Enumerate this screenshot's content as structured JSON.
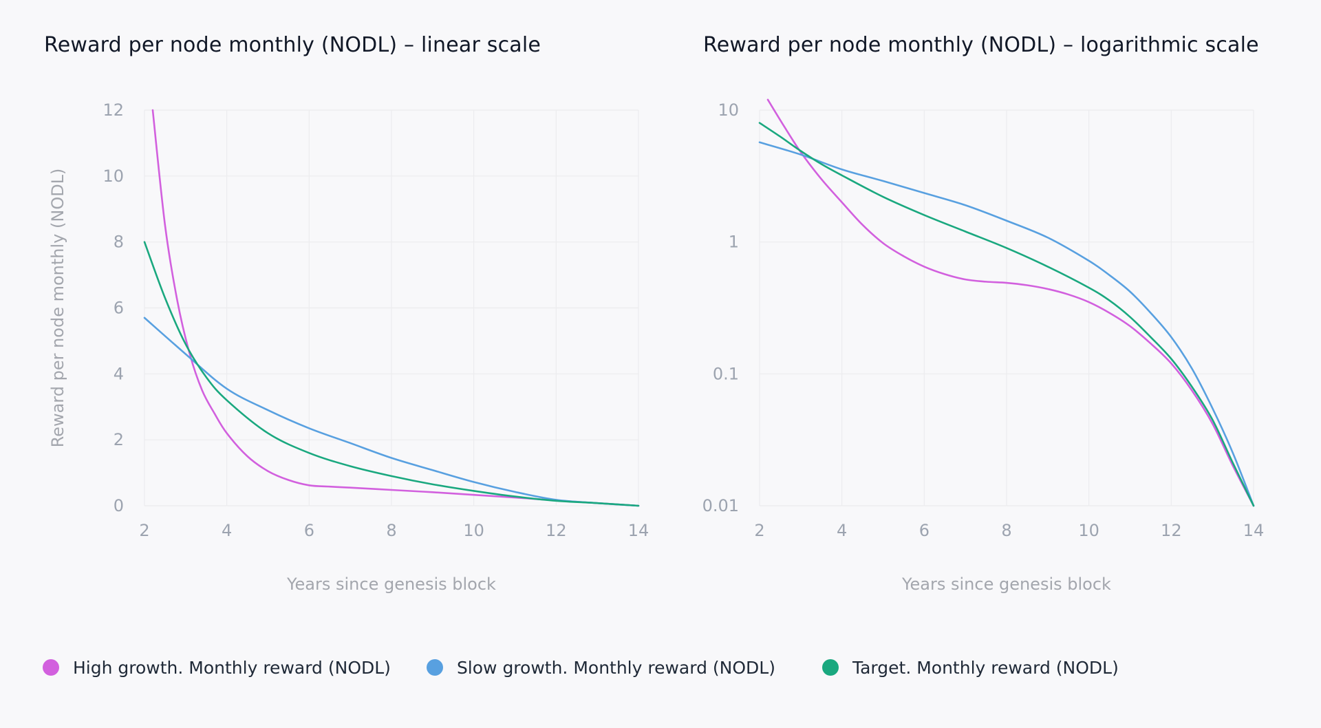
{
  "legend": [
    {
      "label": "High growth. Monthly reward (NODL)",
      "color": "#d260de"
    },
    {
      "label": "Slow growth. Monthly reward (NODL)",
      "color": "#58a0e0"
    },
    {
      "label": "Target. Monthly reward (NODL)",
      "color": "#1aa87f"
    }
  ],
  "chart_data": [
    {
      "type": "line",
      "title": "Reward per node monthly (NODL) – linear scale",
      "xlabel": "Years since genesis block",
      "ylabel": "Reward per node monthly (NODL)",
      "x_scale": "linear",
      "y_scale": "linear",
      "xlim": [
        2,
        14
      ],
      "ylim": [
        0,
        12
      ],
      "x_ticks": [
        2,
        4,
        6,
        8,
        10,
        12,
        14
      ],
      "y_ticks": [
        0,
        2,
        4,
        6,
        8,
        10,
        12
      ],
      "x_tick_labels": [
        "2",
        "4",
        "6",
        "8",
        "10",
        "12",
        "14"
      ],
      "y_tick_labels": [
        "0",
        "2",
        "4",
        "6",
        "8",
        "10",
        "12"
      ],
      "grid": true,
      "legend_position": "bottom",
      "series": [
        {
          "name": "High growth. Monthly reward (NODL)",
          "color": "#d260de",
          "x": [
            2.2,
            2.5,
            2.8,
            3.1,
            3.4,
            3.7,
            4.0,
            4.5,
            5.0,
            5.5,
            6.0,
            6.5,
            7.0,
            8.0,
            9.0,
            10.0,
            11.0,
            12.0,
            13.0,
            14.0
          ],
          "y": [
            12.0,
            8.5,
            6.2,
            4.6,
            3.5,
            2.8,
            2.2,
            1.5,
            1.05,
            0.78,
            0.62,
            0.58,
            0.55,
            0.48,
            0.41,
            0.33,
            0.25,
            0.16,
            0.08,
            0.0
          ]
        },
        {
          "name": "Slow growth. Monthly reward (NODL)",
          "color": "#58a0e0",
          "x": [
            2.0,
            3.0,
            4.0,
            5.0,
            6.0,
            7.0,
            8.0,
            9.0,
            10.0,
            11.0,
            12.0,
            13.0,
            14.0
          ],
          "y": [
            5.7,
            4.6,
            3.55,
            2.9,
            2.35,
            1.9,
            1.45,
            1.08,
            0.72,
            0.42,
            0.18,
            0.08,
            0.0
          ]
        },
        {
          "name": "Target. Monthly reward (NODL)",
          "color": "#1aa87f",
          "x": [
            2.0,
            2.5,
            3.0,
            3.5,
            4.0,
            5.0,
            6.0,
            7.0,
            8.0,
            9.0,
            10.0,
            11.0,
            12.0,
            13.0,
            14.0
          ],
          "y": [
            8.0,
            6.3,
            4.9,
            3.9,
            3.2,
            2.2,
            1.6,
            1.2,
            0.9,
            0.65,
            0.45,
            0.28,
            0.15,
            0.08,
            0.0
          ]
        }
      ]
    },
    {
      "type": "line",
      "title": "Reward per node monthly (NODL) – logarithmic scale",
      "xlabel": "Years since genesis block",
      "ylabel": "",
      "x_scale": "linear",
      "y_scale": "log",
      "xlim": [
        2,
        14
      ],
      "ylim": [
        0.01,
        10
      ],
      "x_ticks": [
        2,
        4,
        6,
        8,
        10,
        12,
        14
      ],
      "y_ticks": [
        0.01,
        0.1,
        1,
        10
      ],
      "x_tick_labels": [
        "2",
        "4",
        "6",
        "8",
        "10",
        "12",
        "14"
      ],
      "y_tick_labels": [
        "0.01",
        "0.1",
        "1",
        "10"
      ],
      "grid": true,
      "legend_position": "bottom",
      "series": [
        {
          "name": "High growth. Monthly reward (NODL)",
          "color": "#d260de",
          "x": [
            2.2,
            2.6,
            3.0,
            3.5,
            4.0,
            4.5,
            5.0,
            5.5,
            6.0,
            6.5,
            7.0,
            7.5,
            8.0,
            8.5,
            9.0,
            9.5,
            10.0,
            10.5,
            11.0,
            11.5,
            12.0,
            12.5,
            13.0,
            13.5,
            14.0
          ],
          "y": [
            12.0,
            7.5,
            4.8,
            3.0,
            2.0,
            1.35,
            0.98,
            0.78,
            0.65,
            0.57,
            0.52,
            0.5,
            0.49,
            0.47,
            0.44,
            0.4,
            0.35,
            0.29,
            0.23,
            0.17,
            0.12,
            0.075,
            0.042,
            0.02,
            0.01
          ]
        },
        {
          "name": "Slow growth. Monthly reward (NODL)",
          "color": "#58a0e0",
          "x": [
            2.0,
            3.0,
            4.0,
            5.0,
            6.0,
            7.0,
            8.0,
            9.0,
            10.0,
            10.5,
            11.0,
            11.5,
            12.0,
            12.5,
            13.0,
            13.5,
            14.0
          ],
          "y": [
            5.7,
            4.6,
            3.55,
            2.9,
            2.35,
            1.9,
            1.45,
            1.08,
            0.72,
            0.56,
            0.42,
            0.29,
            0.19,
            0.11,
            0.055,
            0.025,
            0.01
          ]
        },
        {
          "name": "Target. Monthly reward (NODL)",
          "color": "#1aa87f",
          "x": [
            2.0,
            2.5,
            3.0,
            3.5,
            4.0,
            5.0,
            6.0,
            7.0,
            8.0,
            9.0,
            10.0,
            10.5,
            11.0,
            11.5,
            12.0,
            12.5,
            13.0,
            13.5,
            14.0
          ],
          "y": [
            8.0,
            6.3,
            4.9,
            3.9,
            3.2,
            2.2,
            1.6,
            1.2,
            0.9,
            0.65,
            0.45,
            0.36,
            0.27,
            0.19,
            0.13,
            0.08,
            0.045,
            0.021,
            0.01
          ]
        }
      ]
    }
  ]
}
